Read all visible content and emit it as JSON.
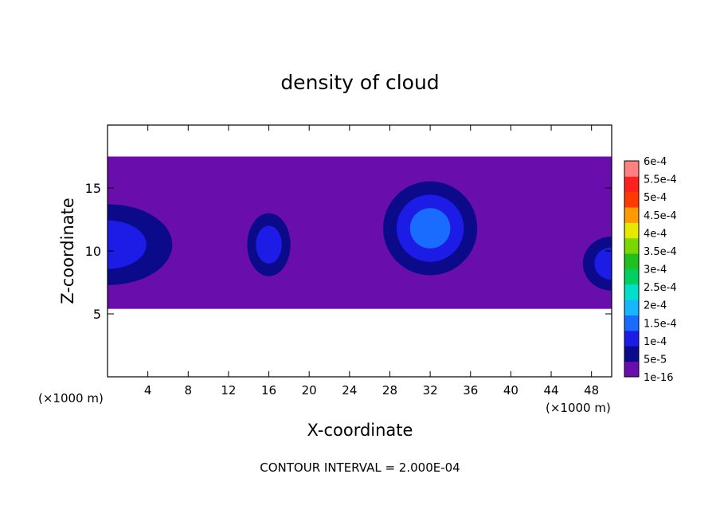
{
  "chart_data": {
    "type": "heatmap",
    "title": "density of cloud",
    "xlabel": "X-coordinate",
    "ylabel": "Z-coordinate",
    "x_unit_left": "(×1000 m)",
    "x_unit_right": "(×1000 m)",
    "xlim": [
      0,
      50
    ],
    "ylim": [
      0,
      20
    ],
    "x_ticks": [
      4,
      8,
      12,
      16,
      20,
      24,
      28,
      32,
      36,
      40,
      44,
      48
    ],
    "y_ticks": [
      5,
      10,
      15
    ],
    "footer": "CONTOUR INTERVAL = 2.000E-04",
    "colorbar": {
      "labels": [
        "1e-16",
        "5e-5",
        "1e-4",
        "1.5e-4",
        "2e-4",
        "2.5e-4",
        "3e-4",
        "3.5e-4",
        "4e-4",
        "4.5e-4",
        "5e-4",
        "5.5e-4",
        "6e-4"
      ],
      "colors": [
        "#6a0dad",
        "#0a0a8a",
        "#1c1ce6",
        "#1a6cff",
        "#19b6ff",
        "#00e0c8",
        "#00d060",
        "#20c020",
        "#7ad800",
        "#e8e800",
        "#ff9a00",
        "#ff3a00",
        "#ff2020",
        "#ff8080"
      ]
    },
    "cloud": {
      "base_km": 5.4,
      "top_km": 17.5,
      "cores": [
        {
          "x_km": 0,
          "z_km": 10.5,
          "rx_km": 9,
          "rz_km": 4.5,
          "level": 0.00014
        },
        {
          "x_km": 16,
          "z_km": 10.5,
          "rx_km": 3,
          "rz_km": 3.5,
          "level": 0.00014
        },
        {
          "x_km": 32,
          "z_km": 11.8,
          "rx_km": 6,
          "rz_km": 4.8,
          "level": 0.00019
        },
        {
          "x_km": 50,
          "z_km": 9,
          "rx_km": 4,
          "rz_km": 3,
          "level": 0.00013
        }
      ]
    }
  }
}
